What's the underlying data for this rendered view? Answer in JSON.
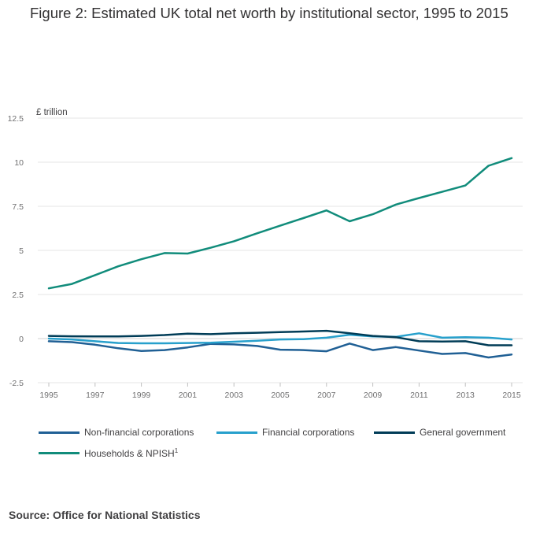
{
  "title": "Figure 2: Estimated UK total net worth by institutional sector, 1995 to 2015",
  "source": "Source: Office for National Statistics",
  "chart_data": {
    "type": "line",
    "title": "Figure 2: Estimated UK total net worth by institutional sector, 1995 to 2015",
    "ylabel": "£ trillion",
    "xlabel": "",
    "ylim": [
      -2.5,
      12.5
    ],
    "xlim": [
      1995,
      2015
    ],
    "yticks": [
      -2.5,
      0,
      2.5,
      5,
      7.5,
      10,
      12.5
    ],
    "ytick_labels": [
      "-2.5",
      "0",
      "2.5",
      "5",
      "7.5",
      "10",
      "12.5"
    ],
    "xticks": [
      1995,
      1997,
      1999,
      2001,
      2003,
      2005,
      2007,
      2009,
      2011,
      2013,
      2015
    ],
    "xtick_labels": [
      "1995",
      "1997",
      "1999",
      "2001",
      "2003",
      "2005",
      "2007",
      "2009",
      "2011",
      "2013",
      "2015"
    ],
    "grid": true,
    "x": [
      1995,
      1996,
      1997,
      1998,
      1999,
      2000,
      2001,
      2002,
      2003,
      2004,
      2005,
      2006,
      2007,
      2008,
      2009,
      2010,
      2011,
      2012,
      2013,
      2014,
      2015
    ],
    "series": [
      {
        "name": "Non-financial corporations",
        "color": "#206095",
        "values": [
          -0.15,
          -0.2,
          -0.35,
          -0.55,
          -0.7,
          -0.65,
          -0.5,
          -0.3,
          -0.33,
          -0.42,
          -0.63,
          -0.65,
          -0.72,
          -0.28,
          -0.65,
          -0.48,
          -0.68,
          -0.87,
          -0.82,
          -1.07,
          -0.9
        ]
      },
      {
        "name": "Financial corporations",
        "color": "#27a0cc",
        "values": [
          0.0,
          -0.05,
          -0.15,
          -0.25,
          -0.27,
          -0.27,
          -0.25,
          -0.23,
          -0.18,
          -0.12,
          -0.05,
          -0.03,
          0.05,
          0.22,
          0.12,
          0.1,
          0.3,
          0.05,
          0.08,
          0.05,
          -0.05
        ]
      },
      {
        "name": "General government",
        "color": "#003c57",
        "values": [
          0.15,
          0.13,
          0.12,
          0.12,
          0.15,
          0.2,
          0.28,
          0.25,
          0.3,
          0.33,
          0.37,
          0.4,
          0.44,
          0.3,
          0.15,
          0.08,
          -0.15,
          -0.17,
          -0.15,
          -0.38,
          -0.38
        ]
      },
      {
        "name": "Households & NPISH",
        "superscript": "1",
        "color": "#118c7b",
        "values": [
          2.85,
          3.1,
          3.6,
          4.1,
          4.5,
          4.85,
          4.82,
          5.15,
          5.52,
          5.97,
          6.4,
          6.83,
          7.27,
          6.65,
          7.05,
          7.6,
          7.97,
          8.32,
          8.68,
          9.8,
          10.23
        ]
      }
    ],
    "legend": "bottom"
  }
}
